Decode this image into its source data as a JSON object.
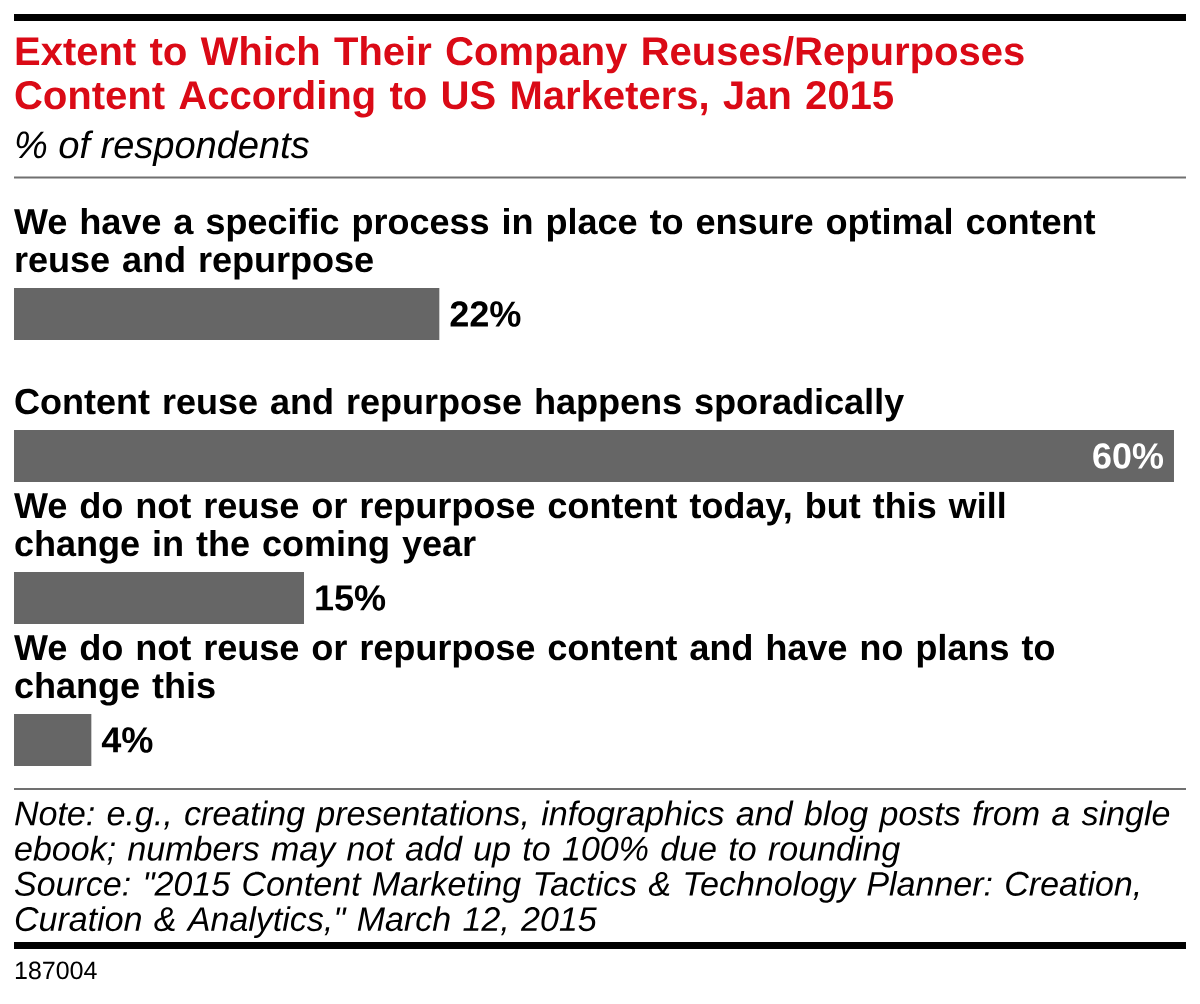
{
  "chart_data": {
    "type": "bar",
    "orientation": "horizontal",
    "title": "Extent to Which Their Company Reuses/Repurposes Content According to US Marketers, Jan 2015",
    "subtitle": "% of respondents",
    "categories": [
      "We have a specific process in place to ensure optimal content reuse and repurpose",
      "Content reuse and repurpose happens sporadically",
      "We do not reuse or repurpose content today, but this will change in the coming year",
      "We do not reuse or repurpose content and have no plans to change this"
    ],
    "values": [
      22,
      60,
      15,
      4
    ],
    "color": "#666666",
    "value_labels": [
      "22%",
      "60%",
      "15%",
      "4%"
    ],
    "annotations": [
      "Note: e.g., creating presentations, infographics and blog posts from a single ebook; numbers may not add up to 100% due to rounding",
      "Source: \"2015 Content Marketing Tactics & Technology Planner: Creation, Curation & Analytics,\" March 12, 2015",
      "187004"
    ]
  }
}
